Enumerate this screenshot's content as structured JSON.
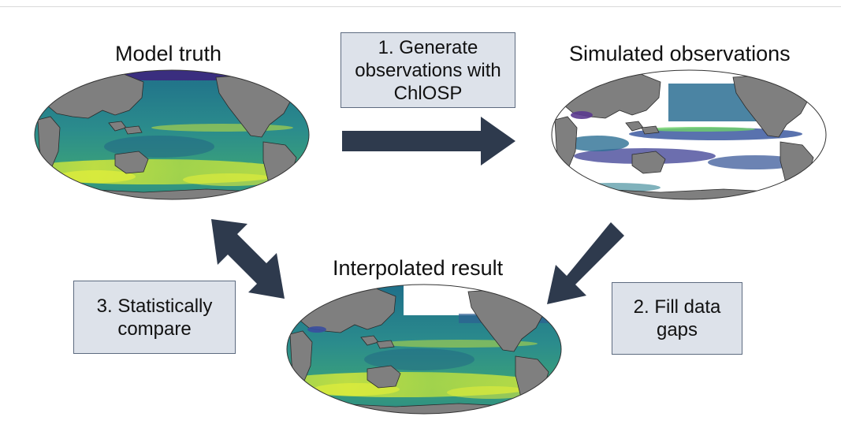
{
  "titles": {
    "model_truth": "Model truth",
    "simulated": "Simulated observations",
    "interpolated": "Interpolated result"
  },
  "steps": {
    "step1": [
      "1. Generate",
      "observations with",
      "ChlOSP"
    ],
    "step2": [
      "2. Fill data",
      "gaps"
    ],
    "step3": [
      "3. Statistically",
      "compare"
    ]
  },
  "colors": {
    "ocean_base": "#2a7f8e",
    "ocean_high": "#c9e43a",
    "ocean_low": "#3a2e7f",
    "land": "#7f7f7f",
    "arrow": "#2e3a4d",
    "box_fill": "#dde2ea",
    "box_border": "#5d6b80"
  }
}
